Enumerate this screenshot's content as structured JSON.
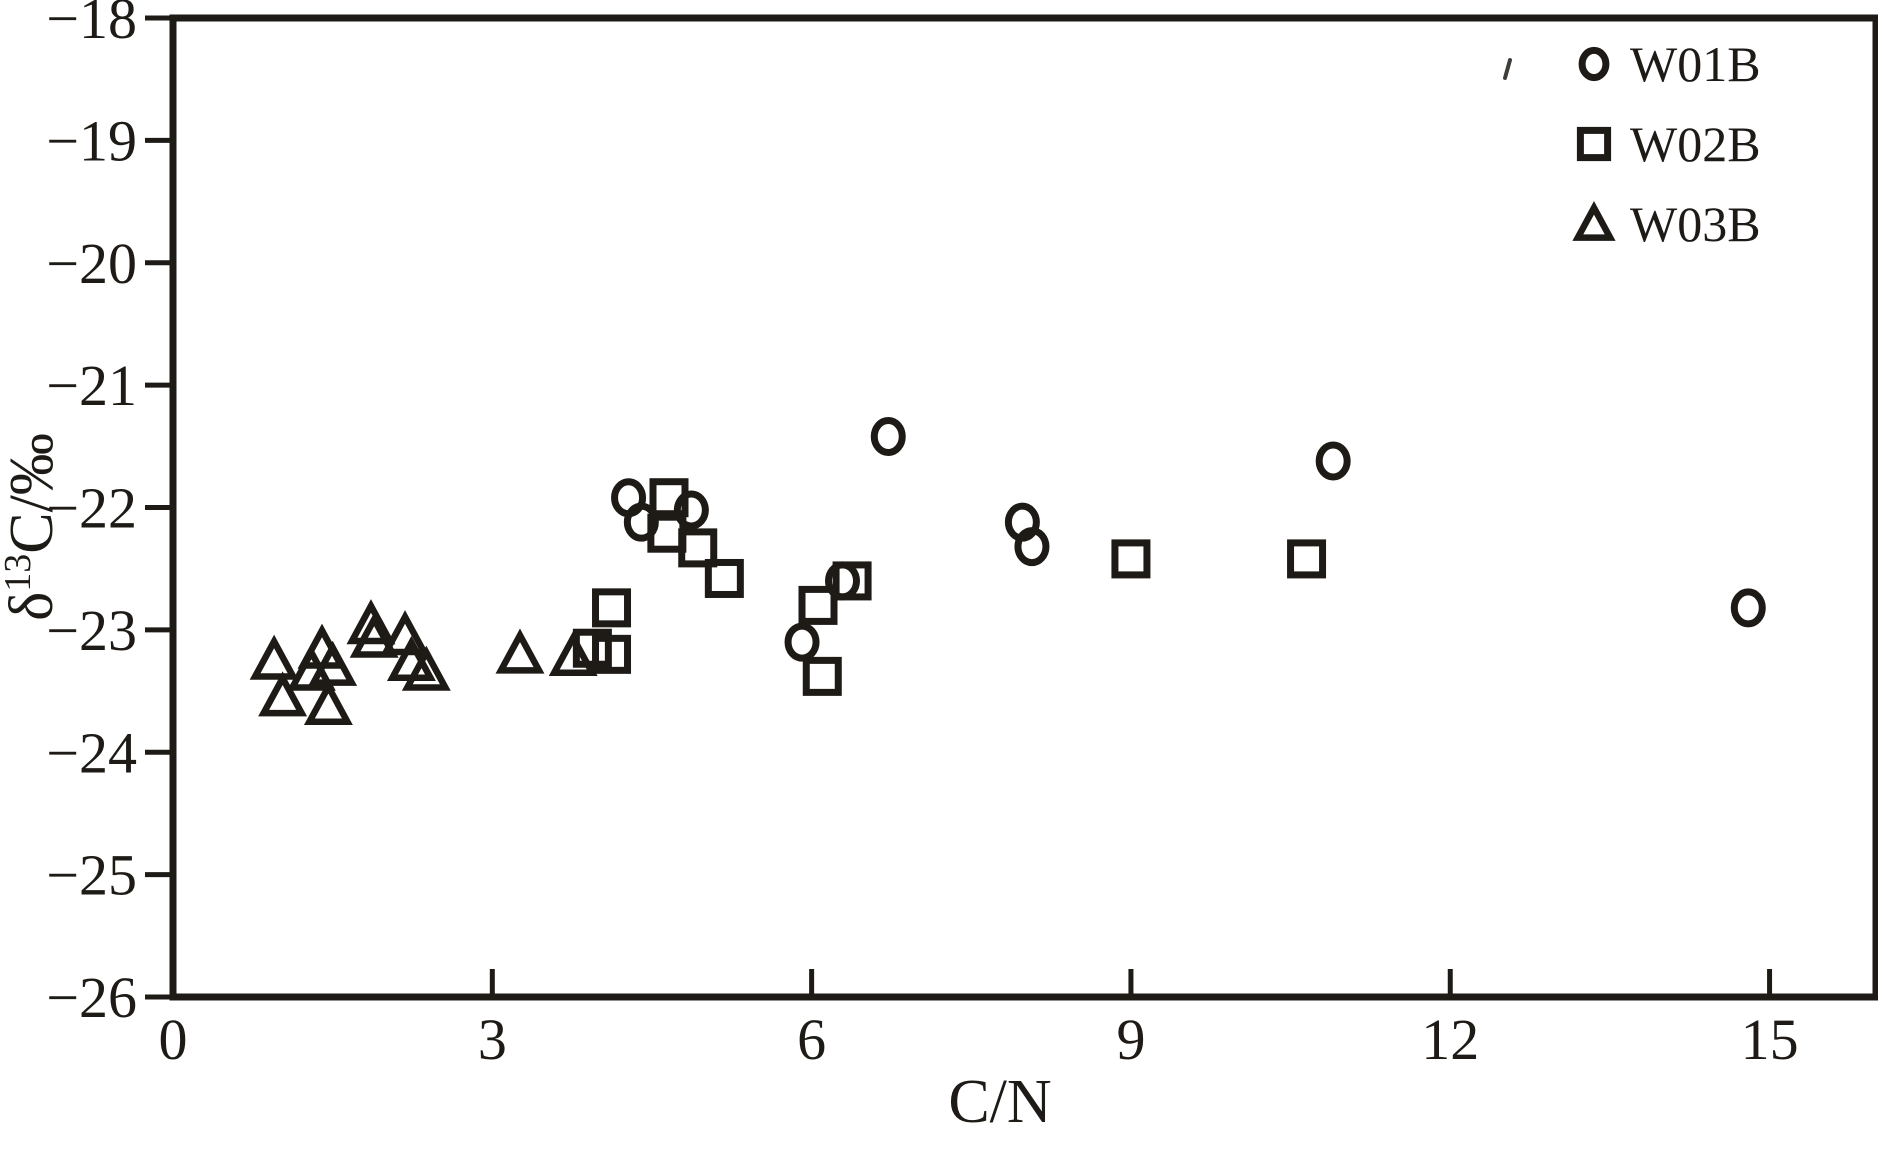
{
  "figure": {
    "background": "#ffffff",
    "ink_color": "#1e1b17"
  },
  "chart_data": {
    "type": "scatter",
    "title": "",
    "xlabel": "C/N",
    "ylabel": "δ¹³C/‰",
    "ylabel_parts": {
      "prefix": "δ",
      "sup": "13",
      "suffix": "C/‰"
    },
    "xlim": [
      0,
      16
    ],
    "ylim": [
      -26,
      -18
    ],
    "x_ticks": [
      0,
      3,
      6,
      9,
      12,
      15
    ],
    "x_tick_labels": [
      "0",
      "3",
      "6",
      "9",
      "12",
      "15"
    ],
    "y_ticks": [
      -18,
      -19,
      -20,
      -21,
      -22,
      -23,
      -24,
      -25,
      -26
    ],
    "y_tick_labels": [
      "−18",
      "−19",
      "−20",
      "−21",
      "−22",
      "−23",
      "−24",
      "−25",
      "−26"
    ],
    "grid": false,
    "legend_position": "top-right",
    "series": [
      {
        "name": "W01B",
        "marker": "circle",
        "points": [
          [
            4.28,
            -21.92
          ],
          [
            4.4,
            -22.12
          ],
          [
            4.87,
            -22.02
          ],
          [
            5.91,
            -23.1
          ],
          [
            6.29,
            -22.6
          ],
          [
            6.72,
            -21.42
          ],
          [
            7.98,
            -22.12
          ],
          [
            8.07,
            -22.32
          ],
          [
            10.9,
            -21.62
          ],
          [
            14.8,
            -22.82
          ]
        ]
      },
      {
        "name": "W02B",
        "marker": "square",
        "points": [
          [
            3.94,
            -23.15
          ],
          [
            4.12,
            -22.82
          ],
          [
            4.12,
            -23.2
          ],
          [
            4.66,
            -21.92
          ],
          [
            4.64,
            -22.21
          ],
          [
            4.93,
            -22.33
          ],
          [
            5.18,
            -22.58
          ],
          [
            6.06,
            -22.8
          ],
          [
            6.1,
            -23.38
          ],
          [
            6.38,
            -22.6
          ],
          [
            9.0,
            -22.42
          ],
          [
            10.65,
            -22.42
          ]
        ]
      },
      {
        "name": "W03B",
        "marker": "triangle",
        "points": [
          [
            0.95,
            -23.25
          ],
          [
            1.03,
            -23.55
          ],
          [
            1.3,
            -23.34
          ],
          [
            1.4,
            -23.16
          ],
          [
            1.5,
            -23.3
          ],
          [
            1.46,
            -23.62
          ],
          [
            1.86,
            -22.96
          ],
          [
            1.89,
            -23.07
          ],
          [
            2.18,
            -23.05
          ],
          [
            2.24,
            -23.26
          ],
          [
            2.38,
            -23.34
          ],
          [
            3.26,
            -23.2
          ],
          [
            3.76,
            -23.22
          ]
        ]
      }
    ]
  }
}
